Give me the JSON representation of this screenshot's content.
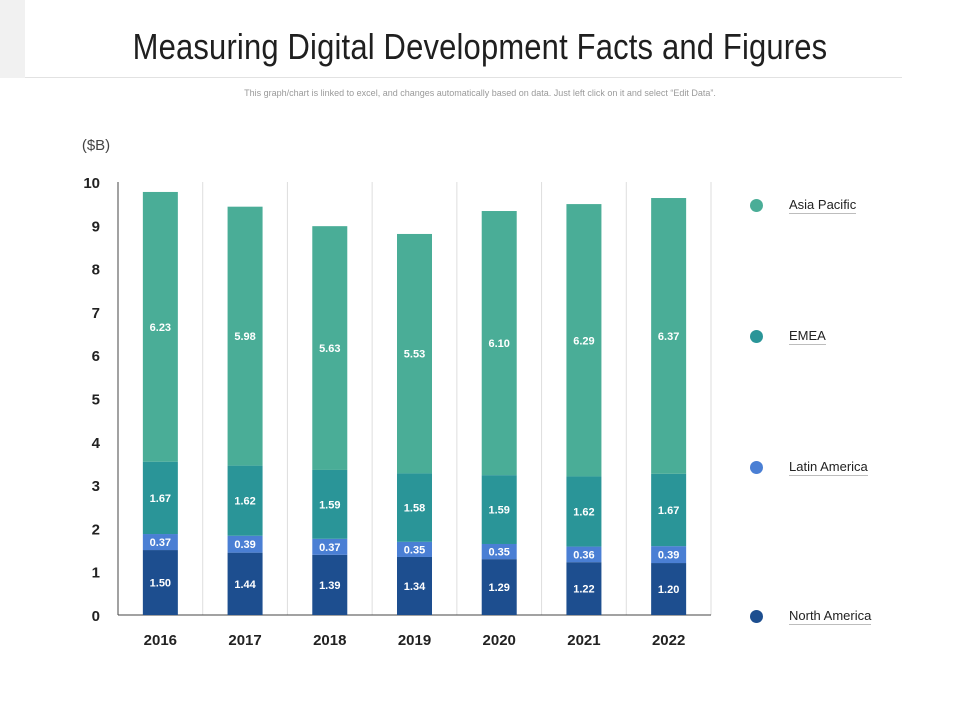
{
  "page": {
    "title": "Measuring Digital Development Facts and Figures",
    "subtitle": "This graph/chart is linked to excel, and changes automatically  based on data. Just left click on it and select “Edit Data”."
  },
  "chart_data": {
    "type": "bar",
    "stacked": true,
    "unit_label": "($B)",
    "categories": [
      "2016",
      "2017",
      "2018",
      "2019",
      "2020",
      "2021",
      "2022"
    ],
    "ylim": [
      0,
      10
    ],
    "yticks": [
      "0",
      "1",
      "2",
      "3",
      "4",
      "5",
      "6",
      "7",
      "8",
      "9",
      "10"
    ],
    "series": [
      {
        "name": "North America",
        "color": "#1d4e8f",
        "values": [
          1.5,
          1.44,
          1.39,
          1.34,
          1.29,
          1.22,
          1.2
        ],
        "labels": [
          "1.50",
          "1.44",
          "1.39",
          "1.34",
          "1.29",
          "1.22",
          "1.20"
        ]
      },
      {
        "name": "Latin America",
        "color": "#4a7fd4",
        "values": [
          0.37,
          0.39,
          0.37,
          0.35,
          0.35,
          0.36,
          0.39
        ],
        "labels": [
          "0.37",
          "0.39",
          "0.37",
          "0.35",
          "0.35",
          "0.36",
          "0.39"
        ]
      },
      {
        "name": "EMEA",
        "color": "#2a9598",
        "values": [
          1.67,
          1.62,
          1.59,
          1.58,
          1.59,
          1.62,
          1.67
        ],
        "labels": [
          "1.67",
          "1.62",
          "1.59",
          "1.58",
          "1.59",
          "1.62",
          "1.67"
        ]
      },
      {
        "name": "Asia Pacific",
        "color": "#4aad97",
        "values": [
          6.23,
          5.98,
          5.63,
          5.53,
          6.1,
          6.29,
          6.37
        ],
        "labels": [
          "6.23",
          "5.98",
          "5.63",
          "5.53",
          "6.10",
          "6.29",
          "6.37"
        ]
      }
    ],
    "legend": [
      "Asia Pacific",
      "EMEA",
      "Latin America",
      "North America"
    ],
    "legend_position": "right",
    "grid": "vertical"
  }
}
